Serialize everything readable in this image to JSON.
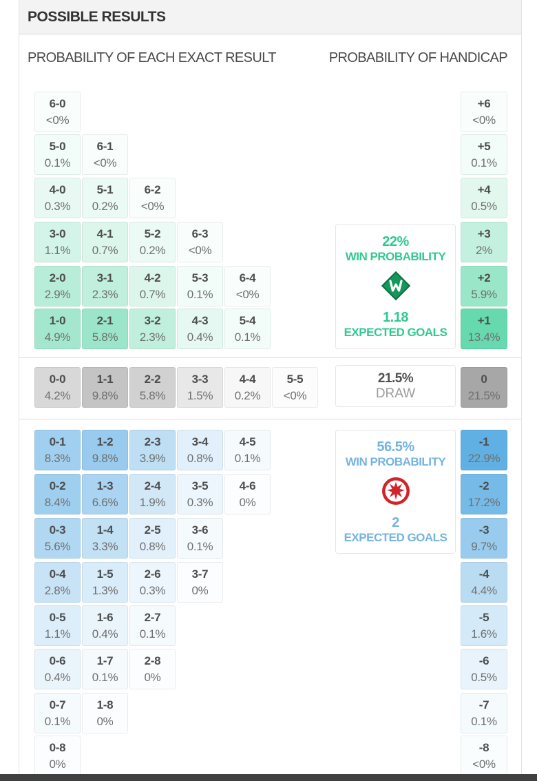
{
  "page": {
    "title": "POSSIBLE RESULTS",
    "left_header": "PROBABILITY OF EACH EXACT RESULT",
    "right_header": "PROBABILITY OF HANDICAP"
  },
  "colors": {
    "home_accent": "#2fcb90",
    "away_accent": "#5aace3",
    "draw_accent": "#a0a0a0",
    "home_text": "#2fc98e",
    "away_text": "#74b3e0",
    "footer_bar": "#404040"
  },
  "result_grid": {
    "home_rows": [
      [
        [
          "6-0",
          "<0%",
          0.02
        ]
      ],
      [
        [
          "5-0",
          "0.1%",
          0.1
        ],
        [
          "6-1",
          "<0%",
          0.02
        ]
      ],
      [
        [
          "4-0",
          "0.3%",
          0.3
        ],
        [
          "5-1",
          "0.2%",
          0.2
        ],
        [
          "6-2",
          "<0%",
          0.02
        ]
      ],
      [
        [
          "3-0",
          "1.1%",
          1.1
        ],
        [
          "4-1",
          "0.7%",
          0.7
        ],
        [
          "5-2",
          "0.2%",
          0.2
        ],
        [
          "6-3",
          "<0%",
          0.02
        ]
      ],
      [
        [
          "2-0",
          "2.9%",
          2.9
        ],
        [
          "3-1",
          "2.3%",
          2.3
        ],
        [
          "4-2",
          "0.7%",
          0.7
        ],
        [
          "5-3",
          "0.1%",
          0.1
        ],
        [
          "6-4",
          "<0%",
          0.02
        ]
      ],
      [
        [
          "1-0",
          "4.9%",
          4.9
        ],
        [
          "2-1",
          "5.8%",
          5.8
        ],
        [
          "3-2",
          "2.3%",
          2.3
        ],
        [
          "4-3",
          "0.4%",
          0.4
        ],
        [
          "5-4",
          "0.1%",
          0.1
        ]
      ]
    ],
    "draw_row": [
      [
        "0-0",
        "4.2%",
        4.2
      ],
      [
        "1-1",
        "9.8%",
        9.8
      ],
      [
        "2-2",
        "5.8%",
        5.8
      ],
      [
        "3-3",
        "1.5%",
        1.5
      ],
      [
        "4-4",
        "0.2%",
        0.2
      ],
      [
        "5-5",
        "<0%",
        0.02
      ]
    ],
    "away_rows": [
      [
        [
          "0-1",
          "8.3%",
          8.3
        ],
        [
          "1-2",
          "9.8%",
          9.8
        ],
        [
          "2-3",
          "3.9%",
          3.9
        ],
        [
          "3-4",
          "0.8%",
          0.8
        ],
        [
          "4-5",
          "0.1%",
          0.1
        ]
      ],
      [
        [
          "0-2",
          "8.4%",
          8.4
        ],
        [
          "1-3",
          "6.6%",
          6.6
        ],
        [
          "2-4",
          "1.9%",
          1.9
        ],
        [
          "3-5",
          "0.3%",
          0.3
        ],
        [
          "4-6",
          "0%",
          0.01
        ]
      ],
      [
        [
          "0-3",
          "5.6%",
          5.6
        ],
        [
          "1-4",
          "3.3%",
          3.3
        ],
        [
          "2-5",
          "0.8%",
          0.8
        ],
        [
          "3-6",
          "0.1%",
          0.1
        ]
      ],
      [
        [
          "0-4",
          "2.8%",
          2.8
        ],
        [
          "1-5",
          "1.3%",
          1.3
        ],
        [
          "2-6",
          "0.3%",
          0.3
        ],
        [
          "3-7",
          "0%",
          0.01
        ]
      ],
      [
        [
          "0-5",
          "1.1%",
          1.1
        ],
        [
          "1-6",
          "0.4%",
          0.4
        ],
        [
          "2-7",
          "0.1%",
          0.1
        ]
      ],
      [
        [
          "0-6",
          "0.4%",
          0.4
        ],
        [
          "1-7",
          "0.1%",
          0.1
        ],
        [
          "2-8",
          "0%",
          0.01
        ]
      ],
      [
        [
          "0-7",
          "0.1%",
          0.1
        ],
        [
          "1-8",
          "0%",
          0.01
        ]
      ],
      [
        [
          "0-8",
          "0%",
          0.01
        ]
      ]
    ]
  },
  "handicap": {
    "home": [
      [
        "+6",
        "<0%",
        0.02
      ],
      [
        "+5",
        "0.1%",
        0.1
      ],
      [
        "+4",
        "0.5%",
        0.5
      ],
      [
        "+3",
        "2%",
        2.0
      ],
      [
        "+2",
        "5.9%",
        5.9
      ],
      [
        "+1",
        "13.4%",
        13.4
      ]
    ],
    "draw": [
      "0",
      "21.5%",
      21.5
    ],
    "away": [
      [
        "-1",
        "22.9%",
        22.9
      ],
      [
        "-2",
        "17.2%",
        17.2
      ],
      [
        "-3",
        "9.7%",
        9.7
      ],
      [
        "-4",
        "4.4%",
        4.4
      ],
      [
        "-5",
        "1.6%",
        1.6
      ],
      [
        "-6",
        "0.5%",
        0.5
      ],
      [
        "-7",
        "0.1%",
        0.1
      ],
      [
        "-8",
        "<0%",
        0.02
      ]
    ]
  },
  "summary": {
    "home": {
      "win_pct": "22%",
      "win_label": "WIN PROBABILITY",
      "team": "werder-bremen",
      "xg": "1.18",
      "xg_label": "EXPECTED GOALS"
    },
    "draw": {
      "pct": "21.5%",
      "label": "DRAW"
    },
    "away": {
      "win_pct": "56.5%",
      "win_label": "WIN PROBABILITY",
      "team": "eintracht-frankfurt",
      "xg": "2",
      "xg_label": "EXPECTED GOALS"
    }
  }
}
